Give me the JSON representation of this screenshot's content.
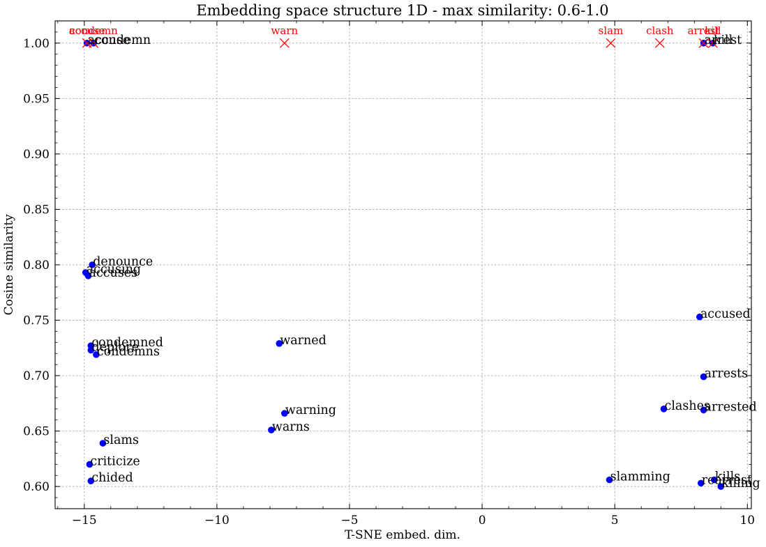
{
  "chart_data": {
    "type": "scatter",
    "title": "Embedding space structure 1D - max similarity: 0.6-1.0",
    "xlabel": "T-SNE embed. dim.",
    "ylabel": "Cosine similarity",
    "xlim": [
      -16.1,
      10.15
    ],
    "ylim": [
      0.58,
      1.02
    ],
    "xticks": [
      -15,
      -10,
      -5,
      0,
      5,
      10
    ],
    "xtick_labels": [
      "−15",
      "−10",
      "−5",
      "0",
      "5",
      "10"
    ],
    "yticks": [
      0.6,
      0.65,
      0.7,
      0.75,
      0.8,
      0.85,
      0.9,
      0.95,
      1.0
    ],
    "ytick_labels": [
      "0.60",
      "0.65",
      "0.70",
      "0.75",
      "0.80",
      "0.85",
      "0.90",
      "0.95",
      "1.00"
    ],
    "grid": true,
    "colors": {
      "query_marker": "#ff0000",
      "neighbor_marker": "#0000ff"
    },
    "query_words": [
      {
        "label": "accuse",
        "x": -14.9,
        "y": 1.0
      },
      {
        "label": "condemn",
        "x": -14.65,
        "y": 1.0
      },
      {
        "label": "warn",
        "x": -7.45,
        "y": 1.0
      },
      {
        "label": "slam",
        "x": 4.85,
        "y": 1.0
      },
      {
        "label": "clash",
        "x": 6.7,
        "y": 1.0
      },
      {
        "label": "arrest",
        "x": 8.35,
        "y": 1.0
      },
      {
        "label": "kill",
        "x": 8.7,
        "y": 1.0
      }
    ],
    "neighbor_words": [
      {
        "label": "accuse",
        "x": -14.9,
        "y": 1.0
      },
      {
        "label": "condemn",
        "x": -14.65,
        "y": 1.0
      },
      {
        "label": "arrest",
        "x": 8.35,
        "y": 1.0
      },
      {
        "label": "kill",
        "x": 8.7,
        "y": 1.0
      },
      {
        "label": "denounce",
        "x": -14.7,
        "y": 0.8
      },
      {
        "label": "accusing",
        "x": -14.95,
        "y": 0.793
      },
      {
        "label": "accuses",
        "x": -14.85,
        "y": 0.79
      },
      {
        "label": "condemned",
        "x": -14.75,
        "y": 0.727
      },
      {
        "label": "deplore",
        "x": -14.75,
        "y": 0.723
      },
      {
        "label": "condemns",
        "x": -14.55,
        "y": 0.719
      },
      {
        "label": "slams",
        "x": -14.3,
        "y": 0.639
      },
      {
        "label": "criticize",
        "x": -14.8,
        "y": 0.62
      },
      {
        "label": "chided",
        "x": -14.75,
        "y": 0.605
      },
      {
        "label": "warned",
        "x": -7.65,
        "y": 0.729
      },
      {
        "label": "warning",
        "x": -7.45,
        "y": 0.666
      },
      {
        "label": "warns",
        "x": -7.95,
        "y": 0.651
      },
      {
        "label": "slamming",
        "x": 4.8,
        "y": 0.606
      },
      {
        "label": "accused",
        "x": 8.2,
        "y": 0.753
      },
      {
        "label": "arrests",
        "x": 8.35,
        "y": 0.699
      },
      {
        "label": "clashes",
        "x": 6.85,
        "y": 0.67
      },
      {
        "label": "arrested",
        "x": 8.35,
        "y": 0.669
      },
      {
        "label": "rearrest",
        "x": 8.25,
        "y": 0.603
      },
      {
        "label": "kills",
        "x": 8.75,
        "y": 0.606
      },
      {
        "label": "killing",
        "x": 9.0,
        "y": 0.6
      }
    ]
  }
}
